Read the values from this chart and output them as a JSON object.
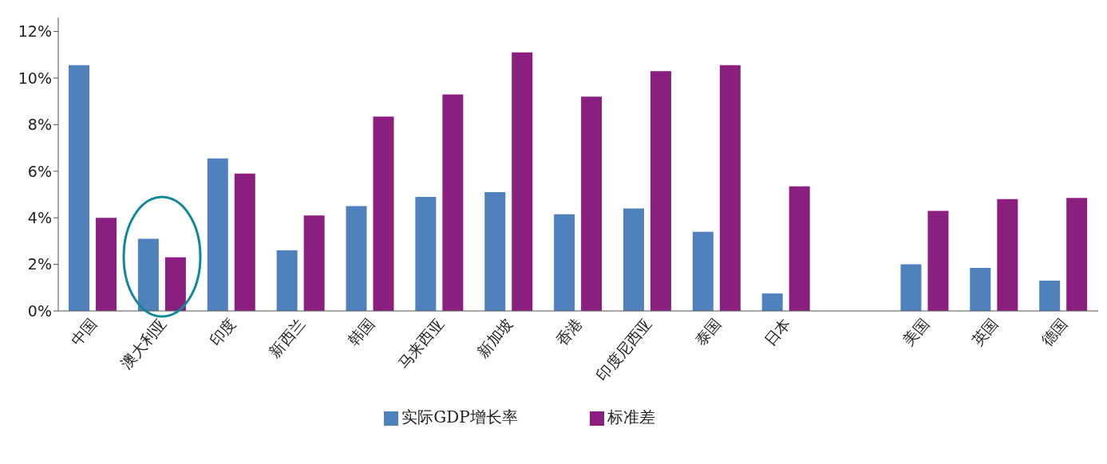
{
  "chart_data": {
    "type": "bar",
    "categories": [
      "中国",
      "澳大利亚",
      "印度",
      "新西兰",
      "韩国",
      "马来西亚",
      "新加坡",
      "香港",
      "印度尼西亚",
      "泰国",
      "日本",
      null,
      "美国",
      "英国",
      "德国"
    ],
    "series": [
      {
        "name": "实际GDP增长率",
        "color": "#4f81bd",
        "values": [
          10.55,
          3.1,
          6.55,
          2.6,
          4.5,
          4.9,
          5.1,
          4.15,
          4.4,
          3.4,
          0.75,
          null,
          2.0,
          1.85,
          1.3
        ]
      },
      {
        "name": "标准差",
        "color": "#8b1f80",
        "values": [
          4.0,
          2.3,
          5.9,
          4.1,
          8.35,
          9.3,
          11.1,
          9.2,
          10.3,
          10.55,
          5.35,
          null,
          4.3,
          4.8,
          4.85
        ]
      }
    ],
    "ylim": [
      0,
      12.6
    ],
    "yticks": [
      {
        "value": 0,
        "label": "0%"
      },
      {
        "value": 2,
        "label": "2%"
      },
      {
        "value": 4,
        "label": "4%"
      },
      {
        "value": 6,
        "label": "6%"
      },
      {
        "value": 8,
        "label": "8%"
      },
      {
        "value": 10,
        "label": "10%"
      },
      {
        "value": 12,
        "label": "12%"
      }
    ],
    "grid": false,
    "legend": "bottom"
  }
}
